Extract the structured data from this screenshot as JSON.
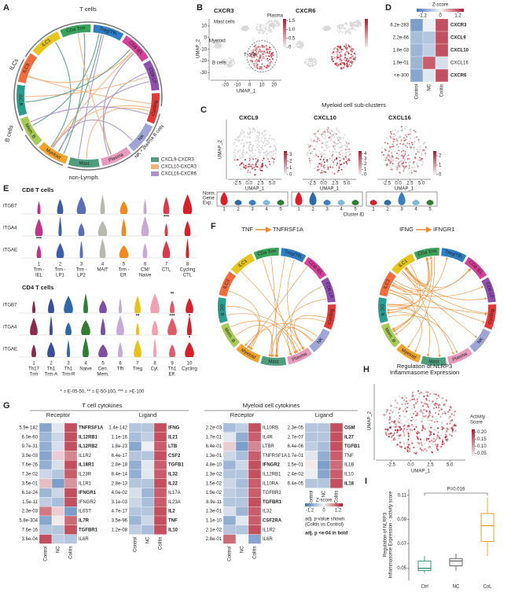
{
  "A": {
    "letter": "A",
    "groups": {
      "top": "T cells",
      "ilc": "ILCs",
      "b": "B cells",
      "non": "non-Lymph.",
      "nk": "NK + plasma B cells"
    },
    "segments": [
      {
        "label": "ILC1",
        "color": "#e8c51c"
      },
      {
        "label": "CD4 Trm",
        "color": "#3aa35b"
      },
      {
        "label": "Treg/Tfh",
        "color": "#2e7dc3"
      },
      {
        "label": "CD8 IEL",
        "color": "#d6409a"
      },
      {
        "label": "CD8 LP",
        "color": "#8e4fb0"
      },
      {
        "label": "Cycling",
        "color": "#e53935"
      },
      {
        "label": "NK",
        "color": "#9fa5d6"
      },
      {
        "label": "Plasma",
        "color": "#e79abb"
      },
      {
        "label": "Mast",
        "color": "#4f9d7e"
      },
      {
        "label": "Myeloid",
        "color": "#f0a32c"
      },
      {
        "label": "Mem. B",
        "color": "#a7c957"
      },
      {
        "label": "GC B",
        "color": "#2a9d8f"
      },
      {
        "label": "ILC3",
        "color": "#f26d3d"
      }
    ],
    "legend": [
      {
        "name": "CXCL9-CXCR3",
        "color": "#5a9a82"
      },
      {
        "name": "CXCL10-CXCR3",
        "color": "#f2b27a"
      },
      {
        "name": "CXCL16-CXCR6",
        "color": "#a993c8"
      }
    ]
  },
  "B": {
    "letter": "B",
    "plots": [
      {
        "title": "CXCR3"
      },
      {
        "title": "CXCR6"
      }
    ],
    "clusters": [
      "Mast cells",
      "Plasma",
      "Myeloid",
      "B cells",
      "T cells"
    ],
    "xlabel": "UMAP_1",
    "ylabel": "UMAP_2",
    "xlim": [
      -32,
      26
    ],
    "ylim": [
      -35,
      16
    ],
    "xticks": [
      -20,
      -10,
      0,
      10,
      20
    ],
    "yticks": [
      10,
      0,
      -10,
      -20,
      -30
    ],
    "cbarlim": [
      0,
      1.6
    ],
    "cbar": [
      1.5,
      {
        "value": 1,
        "label": "1.0"
      },
      0.5,
      0
    ]
  },
  "C": {
    "letter": "C",
    "title": "Myeloid cell sub-clusters",
    "xlabel": "UMAP_1",
    "ylabel": "UMAP_2",
    "xlim": [
      -4.5,
      7
    ],
    "xticks": [
      {
        "value": -2.5,
        "label": "-2.5"
      },
      {
        "value": 0,
        "label": "0.0"
      },
      {
        "value": 2.5,
        "label": "2.5"
      },
      {
        "value": 5,
        "label": "5.0"
      }
    ],
    "plots": [
      {
        "title": "CXCL9",
        "cbarlim": [
          0,
          3.5
        ],
        "cbar": [
          3,
          2,
          1,
          0
        ]
      },
      {
        "title": "CXCL10",
        "cbarlim": [
          0,
          4.5
        ],
        "cbar": [
          4,
          3,
          2,
          1,
          0
        ]
      },
      {
        "title": "CXCL16",
        "cbarlim": [
          0,
          2.5
        ],
        "cbar": [
          2,
          1,
          0
        ]
      }
    ],
    "norm": [
      "Norm.",
      "Gene",
      "Exp."
    ],
    "cluster_label": "Cluster ID",
    "clusters": [
      "1",
      "2",
      "3",
      "4",
      "5"
    ],
    "cluster_colors": [
      "#d7212a",
      "#2e6aa8",
      "#3a7fc0",
      "#7fb8d8",
      "#2e7d32"
    ]
  },
  "D": {
    "letter": "D",
    "zlabel": "Z-score",
    "zlim": [
      -1.6,
      1.6
    ],
    "zticks": [
      -1.2,
      0,
      1.2
    ],
    "genes": [
      "CXCR3",
      "CXCL9",
      "CXCL10",
      "CXCL16",
      "CXCR6"
    ],
    "bold": [
      true,
      true,
      true,
      false,
      true
    ],
    "pvals": [
      "6.2e-283",
      "2.2e-66",
      "1.8e-03",
      "1.9e-01",
      "<e-300"
    ],
    "columns": [
      "Control",
      "NC",
      "Colitis"
    ],
    "z": [
      [
        -1.1,
        -0.1,
        1.2
      ],
      [
        -0.7,
        -0.6,
        1.2
      ],
      [
        -0.8,
        -0.5,
        1.2
      ],
      [
        -0.8,
        1.1,
        -0.3
      ],
      [
        -1.0,
        -0.2,
        1.2
      ]
    ]
  },
  "E": {
    "letter": "E",
    "genes": [
      "ITGB7",
      "ITGA4",
      "ITGAE"
    ],
    "cd8": {
      "title": "CD8 T cells",
      "categories": [
        [
          "1",
          "Trm -",
          "IEL"
        ],
        [
          "2",
          "Trm -",
          "LP1"
        ],
        [
          "3",
          "Trm -",
          "LP2"
        ],
        [
          "4",
          "MAIT"
        ],
        [
          "5",
          "Trm -",
          "Eff."
        ],
        [
          "6",
          "CM/",
          "Naive"
        ],
        [
          "7",
          "CTL"
        ],
        [
          "8",
          "Cycling",
          "CTL"
        ]
      ],
      "colors": [
        "#c2338f",
        "#3a5fa8",
        "#5d6fb3",
        "#b9b9b0",
        "#f08a1c",
        "#c9a9d0",
        "#d93b4b",
        "#d7212a"
      ],
      "stars": [
        [
          null,
          null,
          null,
          null,
          null,
          null,
          null,
          null
        ],
        [
          null,
          null,
          null,
          null,
          null,
          null,
          "***",
          null
        ],
        [
          "***",
          null,
          null,
          null,
          null,
          null,
          null,
          null
        ]
      ]
    },
    "cd4": {
      "title": "CD4 T cells",
      "categories": [
        [
          "1",
          "Th17",
          "Trm"
        ],
        [
          "2",
          "Th1",
          "Trm-A"
        ],
        [
          "3",
          "Th1",
          "Trm-R"
        ],
        [
          "4",
          "Naive"
        ],
        [
          "5",
          "Cen.",
          "Mem."
        ],
        [
          "6",
          "Tfh"
        ],
        [
          "7",
          "Treg"
        ],
        [
          "8",
          "Cyt."
        ],
        [
          "9",
          "Th1",
          "Eff."
        ],
        [
          "10",
          "Cycling"
        ]
      ],
      "colors": [
        "#8a2a4e",
        "#3b4c9b",
        "#2e6aa8",
        "#2e7d32",
        "#7e4fa0",
        "#c7a9d8",
        "#e8c21c",
        "#f0a0b0",
        "#e05a6a",
        "#d7212a"
      ],
      "stars": [
        [
          null,
          null,
          null,
          null,
          null,
          null,
          null,
          null,
          "**",
          null
        ],
        [
          null,
          null,
          null,
          null,
          null,
          null,
          "**",
          null,
          "***",
          "*"
        ],
        [
          null,
          null,
          null,
          null,
          null,
          null,
          null,
          null,
          null,
          "*"
        ]
      ]
    },
    "footnote": "* = E-05-50, ** = E-50-100, *** = >E-100"
  },
  "F": {
    "letter": "F",
    "color": "#f08a2c",
    "plots": [
      {
        "ligand": "TNF",
        "receptor": "TNFRSF1A"
      },
      {
        "ligand": "IFNG",
        "receptor": "IFNGR1"
      }
    ]
  },
  "G": {
    "letter": "G",
    "columns": [
      "Control",
      "NC",
      "Colitis"
    ],
    "zlabel": "Z-score",
    "zlim": [
      -1.6,
      1.6
    ],
    "zticks": [
      -1.2,
      0,
      1.2
    ],
    "note1": "adj. p-value shown",
    "note2": "(Colitis vs Control)",
    "note3": "adj. p <e-04 in bold",
    "tcell": {
      "title": "T cell cytokines",
      "receptor": {
        "title": "Receptor",
        "genes": [
          "TNFRSF1A",
          "IL12RB1",
          "IL12RB2",
          "IL1R2",
          "IL18R1",
          "IL23R",
          "IL1R1",
          "IFNGR1",
          "IFNGR2",
          "IL6ST",
          "IL7R",
          "TGFBR1",
          "IL6R"
        ],
        "bold": [
          true,
          true,
          true,
          false,
          true,
          false,
          false,
          true,
          false,
          false,
          true,
          true,
          false
        ],
        "pvals": [
          "5.9e-142",
          "6.0e-60",
          "9.7e-31",
          "3.9e-03",
          "7.6e-26",
          "7.3e-02",
          "3.5e-01",
          "6.1e-24",
          "1.5e-11",
          "2.3e-03",
          "5.8e-304",
          "7.6e-16",
          "3.6e-04"
        ],
        "z": [
          [
            -1,
            -0.2,
            1.2
          ],
          [
            -0.8,
            -0.4,
            1.2
          ],
          [
            -0.9,
            -0.3,
            1.2
          ],
          [
            -1,
            0.3,
            0.8
          ],
          [
            -0.9,
            -0.3,
            1.2
          ],
          [
            -0.4,
            -0.6,
            1.1
          ],
          [
            0.4,
            -1.1,
            0.7
          ],
          [
            -0.8,
            -0.4,
            1.2
          ],
          [
            -0.5,
            -0.7,
            1.2
          ],
          [
            0.9,
            0.3,
            -1.1
          ],
          [
            -1,
            0.1,
            1
          ],
          [
            -0.6,
            -0.6,
            1.2
          ],
          [
            1.2,
            -0.5,
            -0.6
          ]
        ]
      },
      "ligand": {
        "title": "Ligand",
        "genes": [
          "IFNG",
          "IL21",
          "LTB",
          "CSF2",
          "TGFB1",
          "IL32",
          "IL22",
          "IL17A",
          "IL23A",
          "IL2",
          "TNF",
          "IL10"
        ],
        "bold": [
          true,
          true,
          true,
          true,
          true,
          true,
          true,
          false,
          false,
          true,
          true,
          true
        ],
        "pvals": [
          "1.4e-142",
          "1.1e-16",
          "1.8e-23",
          "6.4e-17",
          "2.8e-18",
          "8.4e-14",
          "2.8e-13",
          "4.0e-02",
          "3.1e-03",
          "4.7e-17",
          "3.5e-96",
          "1.2e-08"
        ],
        "z": [
          [
            -0.6,
            -0.6,
            1.2
          ],
          [
            -0.7,
            -0.5,
            1.2
          ],
          [
            -1,
            -0.1,
            1.1
          ],
          [
            -0.6,
            -0.6,
            1.2
          ],
          [
            -0.9,
            -0.2,
            1.1
          ],
          [
            -0.9,
            -0.2,
            1.1
          ],
          [
            -0.6,
            -0.6,
            1.2
          ],
          [
            -0.3,
            -0.8,
            1.1
          ],
          [
            -0.4,
            -0.7,
            1.1
          ],
          [
            -0.6,
            -0.6,
            1.2
          ],
          [
            -0.8,
            -0.4,
            1.2
          ],
          [
            -0.5,
            -0.7,
            1.2
          ]
        ]
      }
    },
    "myeloid": {
      "title": "Myeloid cell cytokines",
      "receptor": {
        "title": "Receptor",
        "genes": [
          "IL10RB",
          "IL4R",
          "LTBR",
          "TNFRSF1A",
          "IFNGR2",
          "IL12RB1",
          "IL10RA",
          "TGFBR2",
          "TGFBR1",
          "IL32",
          "CSF2RA",
          "IL1R2",
          "IL6R"
        ],
        "bold": [
          false,
          false,
          false,
          false,
          true,
          false,
          false,
          false,
          true,
          false,
          true,
          false,
          false
        ],
        "pvals": [
          "2.2e-03",
          "1.7e-01",
          "6.4e-01",
          "1.3e-01",
          "4.8e-10",
          "1.3e-02",
          "1.5e-02",
          "1.9e-02",
          "8.9e-11",
          "1.3e-01",
          "1.1e-10",
          "2.1e-02",
          "2.8e-01"
        ],
        "z": [
          [
            -0.7,
            -0.5,
            1.2
          ],
          [
            -0.2,
            -0.9,
            1.1
          ],
          [
            0.3,
            -1.1,
            0.8
          ],
          [
            -0.4,
            -0.7,
            1.1
          ],
          [
            -0.8,
            -0.4,
            1.2
          ],
          [
            -0.6,
            -0.6,
            1.2
          ],
          [
            -0.4,
            -0.7,
            1.1
          ],
          [
            -0.5,
            -0.6,
            1.1
          ],
          [
            -0.6,
            -0.6,
            1.2
          ],
          [
            -0.3,
            -0.8,
            1.1
          ],
          [
            -0.9,
            -0.2,
            1.1
          ],
          [
            -0.6,
            -0.6,
            1.2
          ],
          [
            1.0,
            0,
            -1.0
          ]
        ]
      },
      "ligand": {
        "title": "Ligand",
        "genes": [
          "OSM",
          "IL27",
          "TGFB1",
          "TNF",
          "IL1B",
          "IL10",
          "IL18"
        ],
        "bold": [
          true,
          true,
          true,
          false,
          false,
          false,
          true
        ],
        "pvals": [
          "2.3e-05",
          "2.7e-07",
          "6.4e-06",
          "1.7e-01",
          "1.5e-01",
          "2.4e-02",
          "6.4e-05"
        ],
        "z": [
          [
            -0.6,
            -0.6,
            1.2
          ],
          [
            -0.6,
            -0.6,
            1.2
          ],
          [
            -0.5,
            -0.7,
            1.2
          ],
          [
            -0.2,
            -0.9,
            1.1
          ],
          [
            0.1,
            -1.1,
            1
          ],
          [
            -0.1,
            -1,
            1.1
          ],
          [
            -0.6,
            -0.6,
            1.2
          ]
        ]
      }
    }
  },
  "H": {
    "letter": "H",
    "title": [
      "Regulation of NLRP3",
      "Inflammasome Expression"
    ],
    "xlabel": "UMAP_1",
    "ylabel": "UMAP_2",
    "xlim": [
      -4.5,
      7
    ],
    "xticks": [
      {
        "value": -2.5,
        "label": "-2.5"
      },
      {
        "value": 0,
        "label": "0.0"
      },
      {
        "value": 2.5,
        "label": "2.5"
      },
      {
        "value": 5,
        "label": "5.0"
      }
    ],
    "cbar_title": [
      "Activity",
      "Score"
    ],
    "cbarlim": [
      0.03,
      0.22
    ],
    "cbar": [
      {
        "value": 0.2,
        "label": "0.20"
      },
      0.15,
      {
        "value": 0.1,
        "label": "0.10"
      },
      0.05
    ]
  },
  "I": {
    "letter": "I",
    "ylabel": [
      "Regulation of NLRP3",
      "Inflammasome Expression - activity score"
    ],
    "pval": "P=0.016",
    "categories": [
      "Ctrl",
      "NC",
      "CoL"
    ],
    "colors": [
      "#1b8a6b",
      "#555555",
      "#e8961c"
    ],
    "ylim": [
      0.04,
      0.115
    ],
    "yticks": [
      0.11,
      0.09,
      0.07,
      0.05
    ],
    "boxes": [
      {
        "min": 0.046,
        "q1": 0.048,
        "median": 0.05,
        "q3": 0.056,
        "max": 0.06
      },
      {
        "min": 0.048,
        "q1": 0.052,
        "median": 0.056,
        "q3": 0.058,
        "max": 0.062
      },
      {
        "min": 0.06,
        "q1": 0.072,
        "median": 0.085,
        "q3": 0.095,
        "max": 0.108
      }
    ]
  }
}
